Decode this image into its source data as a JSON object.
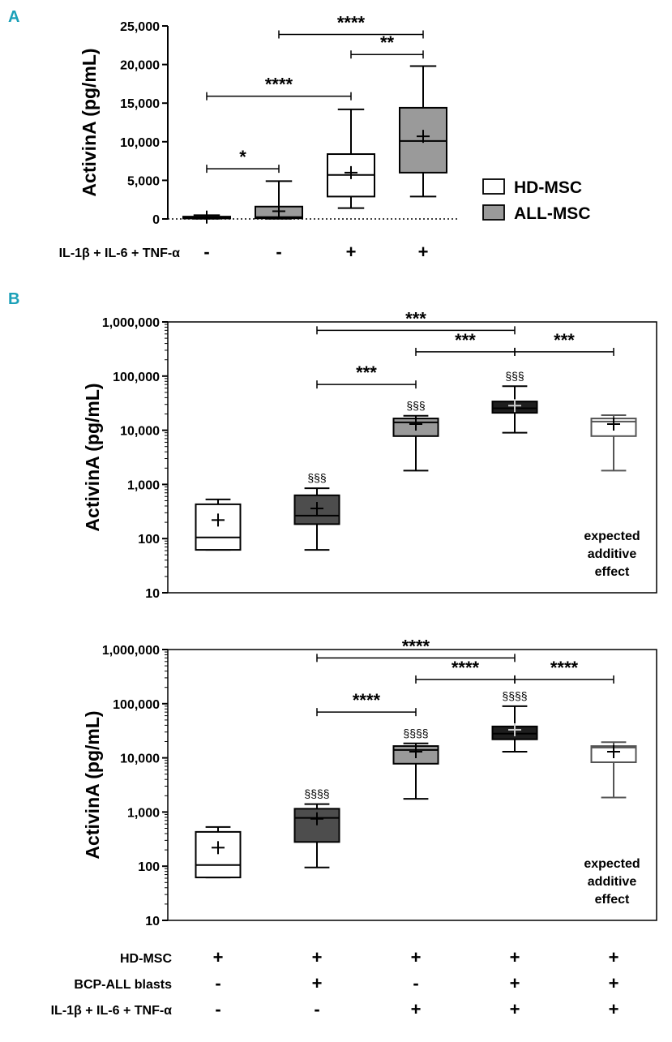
{
  "panel_labels": {
    "a": "A",
    "b": "B"
  },
  "chart_data": [
    {
      "id": "A",
      "type": "box",
      "scale": "linear",
      "ylabel": "ActivinA (pg/mL)",
      "ylim": [
        0,
        25000
      ],
      "yticks": [
        0,
        5000,
        10000,
        15000,
        20000,
        25000
      ],
      "ytick_labels": [
        "0",
        "5,000",
        "10,000",
        "15,000",
        "20,000",
        "25,000"
      ],
      "legend": [
        {
          "label": "HD-MSC",
          "color": "#ffffff"
        },
        {
          "label": "ALL-MSC",
          "color": "#9a9a9a"
        }
      ],
      "condition_rows": [
        {
          "label": "IL-1β + IL-6 + TNF-α",
          "values": [
            "-",
            "-",
            "+",
            "+"
          ]
        }
      ],
      "boxes": [
        {
          "group": "HD-MSC",
          "fill": "#ffffff",
          "min": 20,
          "q1": 60,
          "median": 170,
          "q3": 300,
          "max": 480,
          "mean": 240
        },
        {
          "group": "ALL-MSC",
          "fill": "#9a9a9a",
          "min": 30,
          "q1": 80,
          "median": 230,
          "q3": 1600,
          "max": 4900,
          "mean": 1000
        },
        {
          "group": "HD-MSC",
          "fill": "#ffffff",
          "min": 1400,
          "q1": 2900,
          "median": 5700,
          "q3": 8400,
          "max": 14200,
          "mean": 6000
        },
        {
          "group": "ALL-MSC",
          "fill": "#9a9a9a",
          "min": 2900,
          "q1": 6000,
          "median": 10100,
          "q3": 14400,
          "max": 19800,
          "mean": 10700
        }
      ],
      "brackets": [
        {
          "from": 0,
          "to": 1,
          "y": 6500,
          "label": "*"
        },
        {
          "from": 0,
          "to": 2,
          "y": 15900,
          "label": "****"
        },
        {
          "from": 2,
          "to": 3,
          "y": 21300,
          "label": "**"
        },
        {
          "from": 1,
          "to": 3,
          "y": 23900,
          "label": "****"
        }
      ]
    },
    {
      "id": "B-top",
      "type": "box",
      "scale": "log",
      "ylabel": "ActivinA (pg/mL)",
      "ylim": [
        10,
        1000000
      ],
      "yticks": [
        10,
        100,
        1000,
        10000,
        100000,
        1000000
      ],
      "ytick_labels": [
        "10",
        "100",
        "1,000",
        "10,000",
        "100,000",
        "1,000,000"
      ],
      "boxes": [
        {
          "fill": "#ffffff",
          "stroke": "#000000",
          "min": 62,
          "q1": 62,
          "median": 105,
          "q3": 430,
          "max": 530,
          "mean": 220,
          "sec": ""
        },
        {
          "fill": "#4d4d4d",
          "stroke": "#000000",
          "min": 62,
          "q1": 185,
          "median": 265,
          "q3": 630,
          "max": 850,
          "mean": 360,
          "sec": "§§§"
        },
        {
          "fill": "#9a9a9a",
          "stroke": "#000000",
          "min": 1800,
          "q1": 7800,
          "median": 14000,
          "q3": 16500,
          "max": 18500,
          "mean": 13000,
          "sec": "§§§"
        },
        {
          "fill": "#1e1e1e",
          "stroke": "#000000",
          "min": 9000,
          "q1": 21000,
          "median": 25500,
          "q3": 34000,
          "max": 65000,
          "mean": 28500,
          "sec": "§§§"
        },
        {
          "fill": "#ffffff",
          "stroke": "#555555",
          "min": 1800,
          "q1": 7800,
          "median": 14500,
          "q3": 16500,
          "max": 19000,
          "mean": 13000,
          "sec": ""
        }
      ],
      "brackets": [
        {
          "from": 1,
          "to": 2,
          "y": 70000,
          "label": "***"
        },
        {
          "from": 2,
          "to": 3,
          "y": 280000,
          "label": "***"
        },
        {
          "from": 3,
          "to": 4,
          "y": 280000,
          "label": "***"
        },
        {
          "from": 1,
          "to": 3,
          "y": 700000,
          "label": "***"
        }
      ],
      "note": [
        "expected",
        "additive",
        "effect"
      ]
    },
    {
      "id": "B-bottom",
      "type": "box",
      "scale": "log",
      "ylabel": "ActivinA (pg/mL)",
      "ylim": [
        10,
        1000000
      ],
      "yticks": [
        10,
        100,
        1000,
        10000,
        100000,
        1000000
      ],
      "ytick_labels": [
        "10",
        "100",
        "1,000",
        "10,000",
        "100,000",
        "1,000,000"
      ],
      "boxes": [
        {
          "fill": "#ffffff",
          "stroke": "#000000",
          "min": 62,
          "q1": 62,
          "median": 105,
          "q3": 430,
          "max": 530,
          "mean": 220,
          "sec": ""
        },
        {
          "fill": "#4d4d4d",
          "stroke": "#000000",
          "min": 95,
          "q1": 280,
          "median": 780,
          "q3": 1150,
          "max": 1400,
          "mean": 750,
          "sec": "§§§§"
        },
        {
          "fill": "#9a9a9a",
          "stroke": "#000000",
          "min": 1750,
          "q1": 7800,
          "median": 14000,
          "q3": 16500,
          "max": 18500,
          "mean": 13000,
          "sec": "§§§§"
        },
        {
          "fill": "#1e1e1e",
          "stroke": "#000000",
          "min": 13000,
          "q1": 22000,
          "median": 28000,
          "q3": 38000,
          "max": 90000,
          "mean": 33000,
          "sec": "§§§§"
        },
        {
          "fill": "#ffffff",
          "stroke": "#555555",
          "min": 1850,
          "q1": 8300,
          "median": 15500,
          "q3": 16500,
          "max": 19500,
          "mean": 13000,
          "sec": ""
        }
      ],
      "brackets": [
        {
          "from": 1,
          "to": 2,
          "y": 70000,
          "label": "****"
        },
        {
          "from": 2,
          "to": 3,
          "y": 280000,
          "label": "****"
        },
        {
          "from": 3,
          "to": 4,
          "y": 280000,
          "label": "****"
        },
        {
          "from": 1,
          "to": 3,
          "y": 700000,
          "label": "****"
        }
      ],
      "note": [
        "expected",
        "additive",
        "effect"
      ],
      "condition_rows": [
        {
          "label": "HD-MSC",
          "values": [
            "+",
            "+",
            "+",
            "+",
            "+"
          ]
        },
        {
          "label": "BCP-ALL blasts",
          "values": [
            "-",
            "+",
            "-",
            "+",
            "+"
          ]
        },
        {
          "label": "IL-1β + IL-6 + TNF-α",
          "values": [
            "-",
            "-",
            "+",
            "+",
            "+"
          ]
        }
      ]
    }
  ]
}
